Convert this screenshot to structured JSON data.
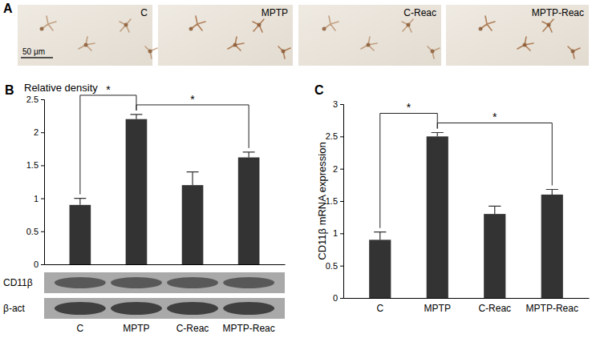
{
  "panel_a": {
    "label": "A",
    "images": [
      "C",
      "MPTP",
      "C-Reac",
      "MPTP-Reac"
    ],
    "scale_bar": "50 μm"
  },
  "chart_data": [
    {
      "type": "bar",
      "panel_label": "B",
      "y_label": "Relative density",
      "categories": [
        "C",
        "MPTP",
        "C-Reac",
        "MPTP-Reac"
      ],
      "values": [
        0.9,
        2.2,
        1.2,
        1.62
      ],
      "errors": [
        0.1,
        0.07,
        0.2,
        0.08
      ],
      "color": "#333333",
      "ylim": [
        0,
        2.5
      ],
      "yticks": [
        0,
        0.5,
        1,
        1.5,
        2,
        2.5
      ],
      "blot_rows": [
        "CD11β",
        "β-act"
      ],
      "annotations": [
        {
          "text": "*",
          "from": 0,
          "to": 1
        },
        {
          "text": "*",
          "from": 1,
          "to": 3
        }
      ]
    },
    {
      "type": "bar",
      "panel_label": "C",
      "y_label": "CD11β mRNA expression",
      "categories": [
        "C",
        "MPTP",
        "C-Reac",
        "MPTP-Reac"
      ],
      "values": [
        0.9,
        2.5,
        1.3,
        1.6
      ],
      "errors": [
        0.12,
        0.06,
        0.12,
        0.08
      ],
      "color": "#333333",
      "ylim": [
        0,
        3
      ],
      "yticks": [
        0,
        0.5,
        1,
        1.5,
        2,
        2.5,
        3
      ],
      "annotations": [
        {
          "text": "*",
          "from": 0,
          "to": 1
        },
        {
          "text": "*",
          "from": 1,
          "to": 3
        }
      ]
    }
  ]
}
